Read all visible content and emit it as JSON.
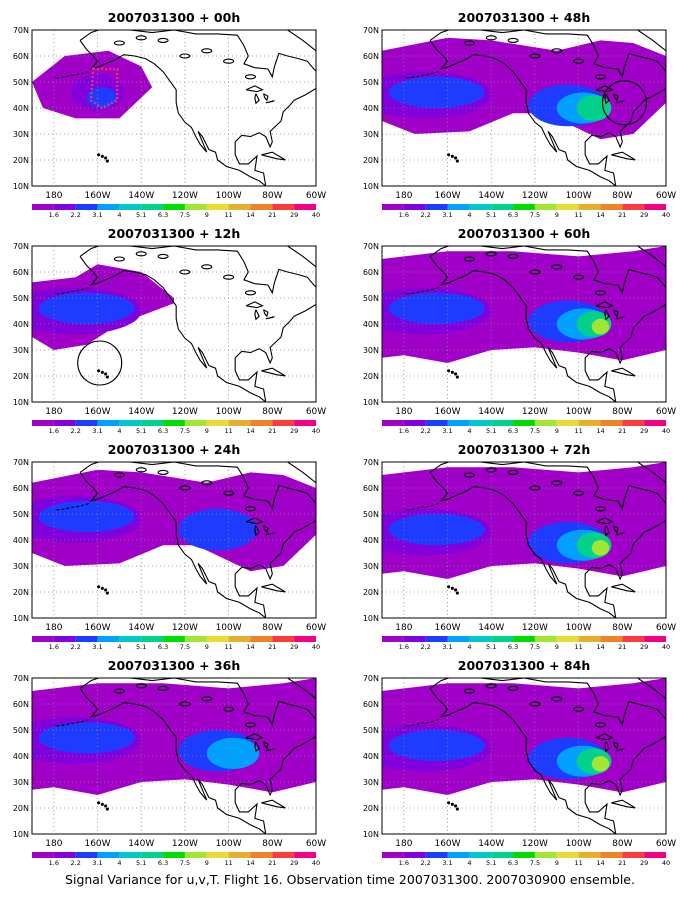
{
  "figure": {
    "caption": "Signal Variance for u,v,T. Flight 16. Observation time 2007031300. 2007030900 ensemble.",
    "x_tick_labels": [
      "180",
      "160W",
      "140W",
      "120W",
      "100W",
      "80W",
      "60W"
    ],
    "y_tick_labels": [
      "10N",
      "20N",
      "30N",
      "40N",
      "50N",
      "60N",
      "70N"
    ],
    "colorbar": {
      "labels": [
        "1.6",
        "2.2",
        "3.1",
        "4",
        "5.1",
        "6.3",
        "7.5",
        "9",
        "11",
        "14",
        "21",
        "29",
        "40"
      ],
      "colors": [
        "#a000c8",
        "#8200dc",
        "#1e3cff",
        "#00a0ff",
        "#00c8c8",
        "#00d28c",
        "#00dc00",
        "#a0e632",
        "#e6dc32",
        "#e6af2d",
        "#f08228",
        "#fa3c3c",
        "#f00082"
      ]
    }
  },
  "panels": [
    {
      "title": "2007031300 + 00h"
    },
    {
      "title": "2007031300 + 48h"
    },
    {
      "title": "2007031300 + 12h"
    },
    {
      "title": "2007031300 + 60h"
    },
    {
      "title": "2007031300 + 24h"
    },
    {
      "title": "2007031300 + 72h"
    },
    {
      "title": "2007031300 + 36h"
    },
    {
      "title": "2007031300 + 84h"
    }
  ]
}
